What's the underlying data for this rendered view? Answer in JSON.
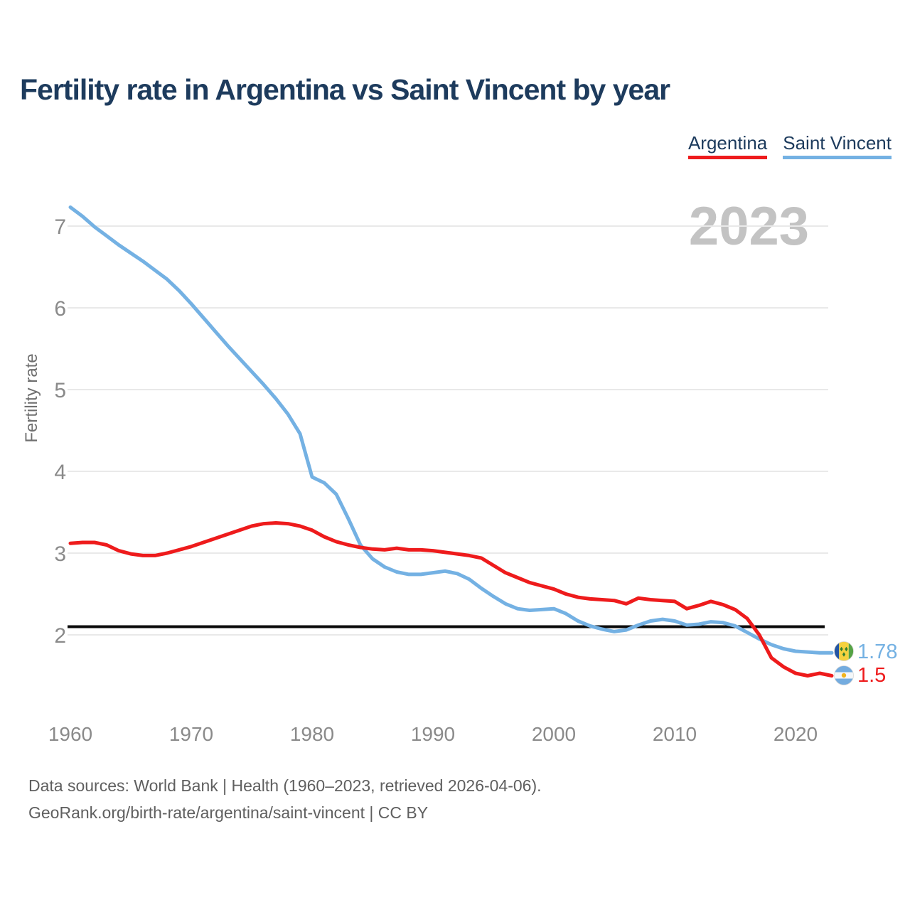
{
  "title": "Fertility rate in Argentina vs Saint Vincent by year",
  "legend": {
    "items": [
      {
        "label": "Argentina",
        "color": "#ee1b1c"
      },
      {
        "label": "Saint Vincent",
        "color": "#74b1e3"
      }
    ]
  },
  "watermark": {
    "text": "2023"
  },
  "y_axis": {
    "label": "Fertility rate",
    "ticks": [
      2,
      3,
      4,
      5,
      6,
      7
    ]
  },
  "x_axis": {
    "ticks": [
      1960,
      1970,
      1980,
      1990,
      2000,
      2010,
      2020
    ]
  },
  "reference_line": {
    "value": 2.1,
    "color": "#0a0a0a"
  },
  "end_labels": {
    "saint_vincent": "1.78",
    "argentina": "1.5"
  },
  "flags": {
    "saint_vincent": "saint-vincent-flag",
    "argentina": "argentina-flag"
  },
  "footer": {
    "line1": "Data sources: World Bank | Health (1960–2023, retrieved 2026-04-06).",
    "line2": "GeoRank.org/birth-rate/argentina/saint-vincent | CC BY"
  },
  "chart_data": {
    "type": "line",
    "x_start": 1960,
    "x_end": 2023,
    "xlabel": "",
    "ylabel": "Fertility rate",
    "ylim": [
      1.35,
      7.45
    ],
    "grid": "horizontal",
    "legend_position": "top-right",
    "reference_line": 2.1,
    "series": [
      {
        "name": "Saint Vincent",
        "color": "#74b1e3",
        "final_value": 1.78,
        "values": [
          7.23,
          7.12,
          6.99,
          6.88,
          6.77,
          6.67,
          6.57,
          6.46,
          6.35,
          6.21,
          6.05,
          5.88,
          5.71,
          5.54,
          5.38,
          5.22,
          5.06,
          4.89,
          4.7,
          4.46,
          3.93,
          3.86,
          3.72,
          3.42,
          3.1,
          2.93,
          2.83,
          2.77,
          2.74,
          2.74,
          2.76,
          2.78,
          2.75,
          2.68,
          2.57,
          2.47,
          2.38,
          2.32,
          2.3,
          2.31,
          2.32,
          2.26,
          2.17,
          2.11,
          2.07,
          2.04,
          2.06,
          2.12,
          2.17,
          2.19,
          2.17,
          2.12,
          2.13,
          2.16,
          2.15,
          2.11,
          2.03,
          1.95,
          1.88,
          1.83,
          1.8,
          1.79,
          1.78,
          1.78
        ]
      },
      {
        "name": "Argentina",
        "color": "#ee1b1c",
        "final_value": 1.5,
        "values": [
          3.12,
          3.13,
          3.13,
          3.1,
          3.03,
          2.99,
          2.97,
          2.97,
          3.0,
          3.04,
          3.08,
          3.13,
          3.18,
          3.23,
          3.28,
          3.33,
          3.36,
          3.37,
          3.36,
          3.33,
          3.28,
          3.2,
          3.14,
          3.1,
          3.07,
          3.05,
          3.04,
          3.06,
          3.04,
          3.04,
          3.03,
          3.01,
          2.99,
          2.97,
          2.94,
          2.85,
          2.76,
          2.7,
          2.64,
          2.6,
          2.56,
          2.5,
          2.46,
          2.44,
          2.43,
          2.42,
          2.38,
          2.45,
          2.43,
          2.42,
          2.41,
          2.32,
          2.36,
          2.41,
          2.37,
          2.31,
          2.2,
          2.0,
          1.72,
          1.61,
          1.53,
          1.5,
          1.53,
          1.5
        ]
      }
    ]
  }
}
